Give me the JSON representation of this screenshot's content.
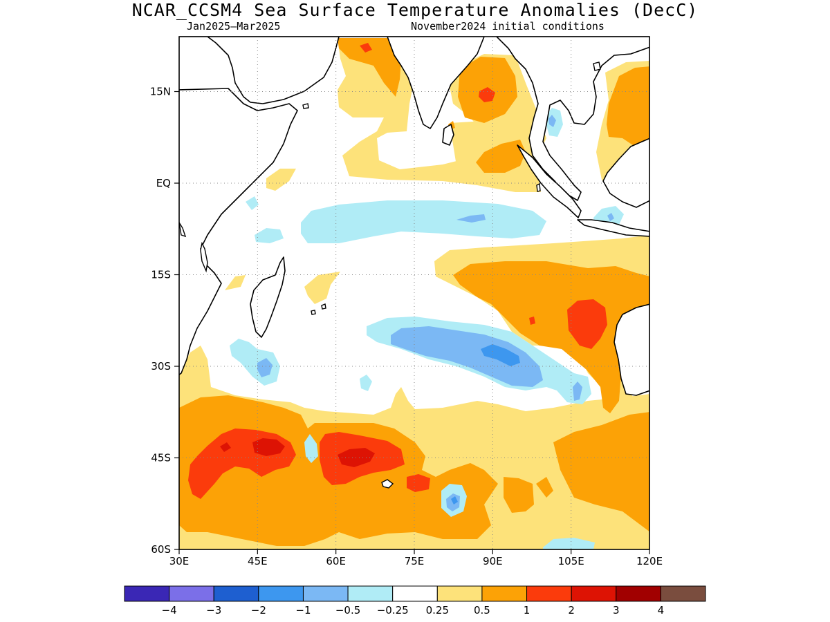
{
  "title": "NCAR_CCSM4 Sea Surface Temperature Anomalies (DecC)",
  "subtitle_left": "Jan2025–Mar2025",
  "subtitle_right": "November2024 initial conditions",
  "map": {
    "lon_range": [
      30,
      120
    ],
    "lat_range": [
      -60,
      24
    ],
    "lat_ticks": [
      {
        "value": 15,
        "label": "15N"
      },
      {
        "value": 0,
        "label": "EQ"
      },
      {
        "value": -15,
        "label": "15S"
      },
      {
        "value": -30,
        "label": "30S"
      },
      {
        "value": -45,
        "label": "45S"
      },
      {
        "value": -60,
        "label": "60S"
      }
    ],
    "lon_ticks": [
      {
        "value": 30,
        "label": "30E"
      },
      {
        "value": 45,
        "label": "45E"
      },
      {
        "value": 60,
        "label": "60E"
      },
      {
        "value": 75,
        "label": "75E"
      },
      {
        "value": 90,
        "label": "90E"
      },
      {
        "value": 105,
        "label": "105E"
      },
      {
        "value": 120,
        "label": "120E"
      }
    ],
    "grid": "dotted"
  },
  "legend": {
    "colors": [
      "#3a27b5",
      "#7b6fe8",
      "#1e5fd0",
      "#3d97ef",
      "#7bb8f4",
      "#b0ecf6",
      "#ffffff",
      "#fde27a",
      "#fca206",
      "#fb3b0c",
      "#dd1304",
      "#a10000",
      "#7a4d3e"
    ],
    "labels": [
      "−4",
      "−3",
      "−2",
      "−1",
      "−0.5",
      "−0.25",
      "0.25",
      "0.5",
      "1",
      "2",
      "3",
      "4"
    ]
  }
}
